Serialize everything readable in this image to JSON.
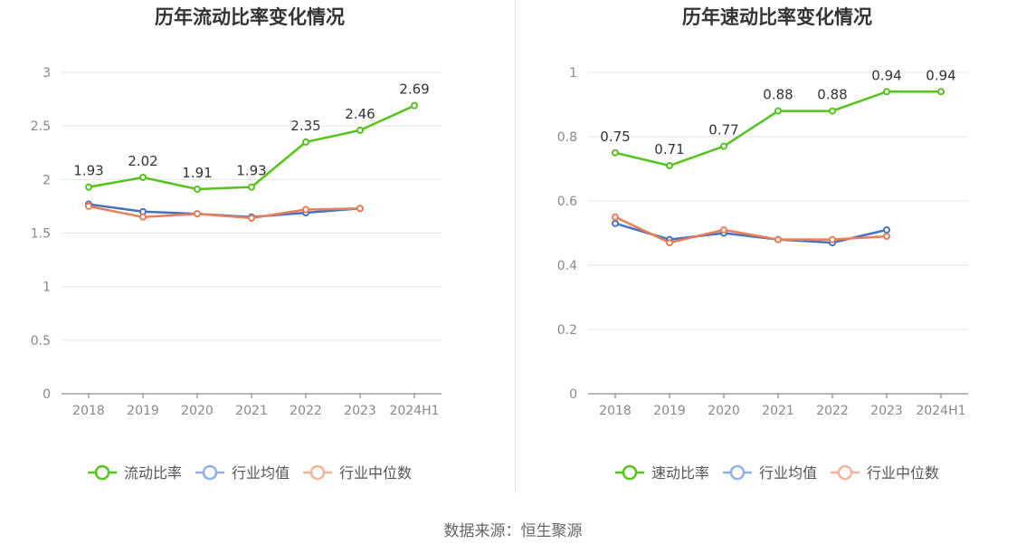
{
  "footer": {
    "source": "数据来源：恒生聚源"
  },
  "colors": {
    "main": "#52c41a",
    "avg": "#4472c4",
    "median": "#ed7d55",
    "avg_legend": "#8fb0ee",
    "median_legend": "#f5b39c"
  },
  "chart_data": [
    {
      "type": "line",
      "title": "历年流动比率变化情况",
      "categories": [
        "2018",
        "2019",
        "2020",
        "2021",
        "2022",
        "2023",
        "2024H1"
      ],
      "ylim": [
        0,
        3
      ],
      "yticks": [
        "0",
        "0.5",
        "1",
        "1.5",
        "2",
        "2.5",
        "3"
      ],
      "grid": true,
      "legend_position": "bottom",
      "series": [
        {
          "name": "流动比率",
          "values": [
            1.93,
            2.02,
            1.91,
            1.93,
            2.35,
            2.46,
            2.69
          ],
          "labels": [
            "1.93",
            "2.02",
            "1.91",
            "1.93",
            "2.35",
            "2.46",
            "2.69"
          ]
        },
        {
          "name": "行业均值",
          "values": [
            1.77,
            1.7,
            1.68,
            1.65,
            1.69,
            1.73,
            null
          ]
        },
        {
          "name": "行业中位数",
          "values": [
            1.75,
            1.65,
            1.68,
            1.64,
            1.72,
            1.73,
            null
          ]
        }
      ]
    },
    {
      "type": "line",
      "title": "历年速动比率变化情况",
      "categories": [
        "2018",
        "2019",
        "2020",
        "2021",
        "2022",
        "2023",
        "2024H1"
      ],
      "ylim": [
        0,
        1
      ],
      "yticks": [
        "0",
        "0.2",
        "0.4",
        "0.6",
        "0.8",
        "1"
      ],
      "grid": true,
      "legend_position": "bottom",
      "series": [
        {
          "name": "速动比率",
          "values": [
            0.75,
            0.71,
            0.77,
            0.88,
            0.88,
            0.94,
            0.94
          ],
          "labels": [
            "0.75",
            "0.71",
            "0.77",
            "0.88",
            "0.88",
            "0.94",
            "0.94"
          ]
        },
        {
          "name": "行业均值",
          "values": [
            0.53,
            0.48,
            0.5,
            0.48,
            0.47,
            0.51,
            null
          ]
        },
        {
          "name": "行业中位数",
          "values": [
            0.55,
            0.47,
            0.51,
            0.48,
            0.48,
            0.49,
            null
          ]
        }
      ]
    }
  ]
}
